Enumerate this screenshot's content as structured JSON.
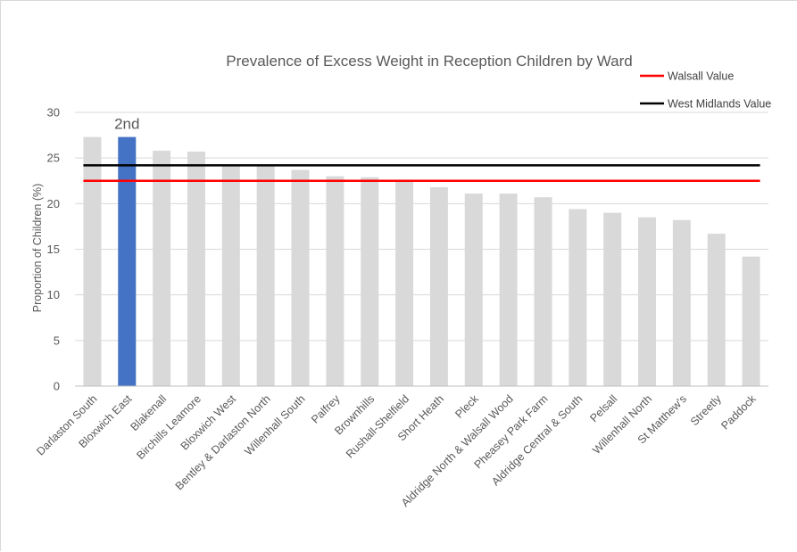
{
  "chart_data": {
    "type": "bar",
    "title": "Prevalence of Excess Weight in Reception Children by Ward",
    "xlabel": "",
    "ylabel": "Proportion of  Children (%)",
    "ylim": [
      0,
      30
    ],
    "yticks": [
      0,
      5,
      10,
      15,
      20,
      25,
      30
    ],
    "grid": true,
    "categories": [
      "Darlaston South",
      "Bloxwich East",
      "Blakenall",
      "Birchills Leamore",
      "Bloxwich West",
      "Bentley & Darlaston North",
      "Willenhall South",
      "Palfrey",
      "Brownhills",
      "Rushall-Shelfield",
      "Short Heath",
      "Pleck",
      "Aldridge North & Walsall Wood",
      "Pheasey Park Farm",
      "Aldridge Central & South",
      "Pelsall",
      "Willenhall North",
      "St Matthew's",
      "Streetly",
      "Paddock"
    ],
    "values": [
      27.3,
      27.3,
      25.8,
      25.7,
      24.2,
      24.2,
      23.7,
      23.0,
      22.9,
      22.6,
      21.8,
      21.1,
      21.1,
      20.7,
      19.4,
      19.0,
      18.5,
      18.2,
      16.7,
      14.2
    ],
    "bar_color": "#d9d9d9",
    "highlight_index": 1,
    "highlight_color": "#4472c4",
    "annotation": {
      "text": "2nd",
      "index": 1
    },
    "reference_lines": [
      {
        "name": "Walsall Value",
        "value": 22.5,
        "color": "#ff0000"
      },
      {
        "name": "West Midlands Value",
        "value": 24.2,
        "color": "#000000"
      }
    ],
    "legend_position": "top-right"
  }
}
